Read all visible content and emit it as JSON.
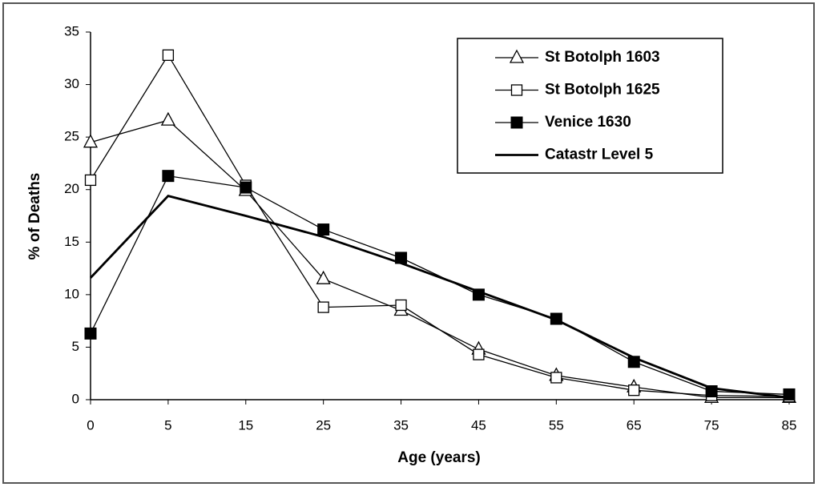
{
  "chart_data": {
    "type": "line",
    "categories": [
      "0",
      "5",
      "15",
      "25",
      "35",
      "45",
      "55",
      "65",
      "75",
      "85"
    ],
    "x_label": "Age (years)",
    "y_label": "% of Deaths",
    "ylim": [
      0,
      35
    ],
    "yticks": [
      0,
      5,
      10,
      15,
      20,
      25,
      30,
      35
    ],
    "grid": false,
    "legend": "top-right",
    "series": [
      {
        "name": "St Botolph 1603",
        "color": "#000000",
        "marker": "triangle-open",
        "values": [
          24.5,
          26.6,
          19.9,
          11.5,
          8.5,
          4.8,
          2.3,
          1.2,
          0.2,
          0.2
        ]
      },
      {
        "name": "St Botolph 1625",
        "color": "#000000",
        "marker": "square-open",
        "values": [
          20.9,
          32.8,
          20.4,
          8.8,
          9.0,
          4.3,
          2.1,
          0.9,
          0.4,
          0.3
        ]
      },
      {
        "name": "Venice 1630",
        "color": "#000000",
        "marker": "square-filled",
        "values": [
          6.3,
          21.3,
          20.2,
          16.2,
          13.5,
          10.0,
          7.7,
          3.6,
          0.8,
          0.5
        ]
      },
      {
        "name": "Catastr Level 5",
        "color": "#000000",
        "values": [
          11.6,
          19.4,
          17.5,
          15.5,
          13.0,
          10.3,
          7.6,
          4.0,
          1.1,
          0.2
        ]
      }
    ]
  }
}
